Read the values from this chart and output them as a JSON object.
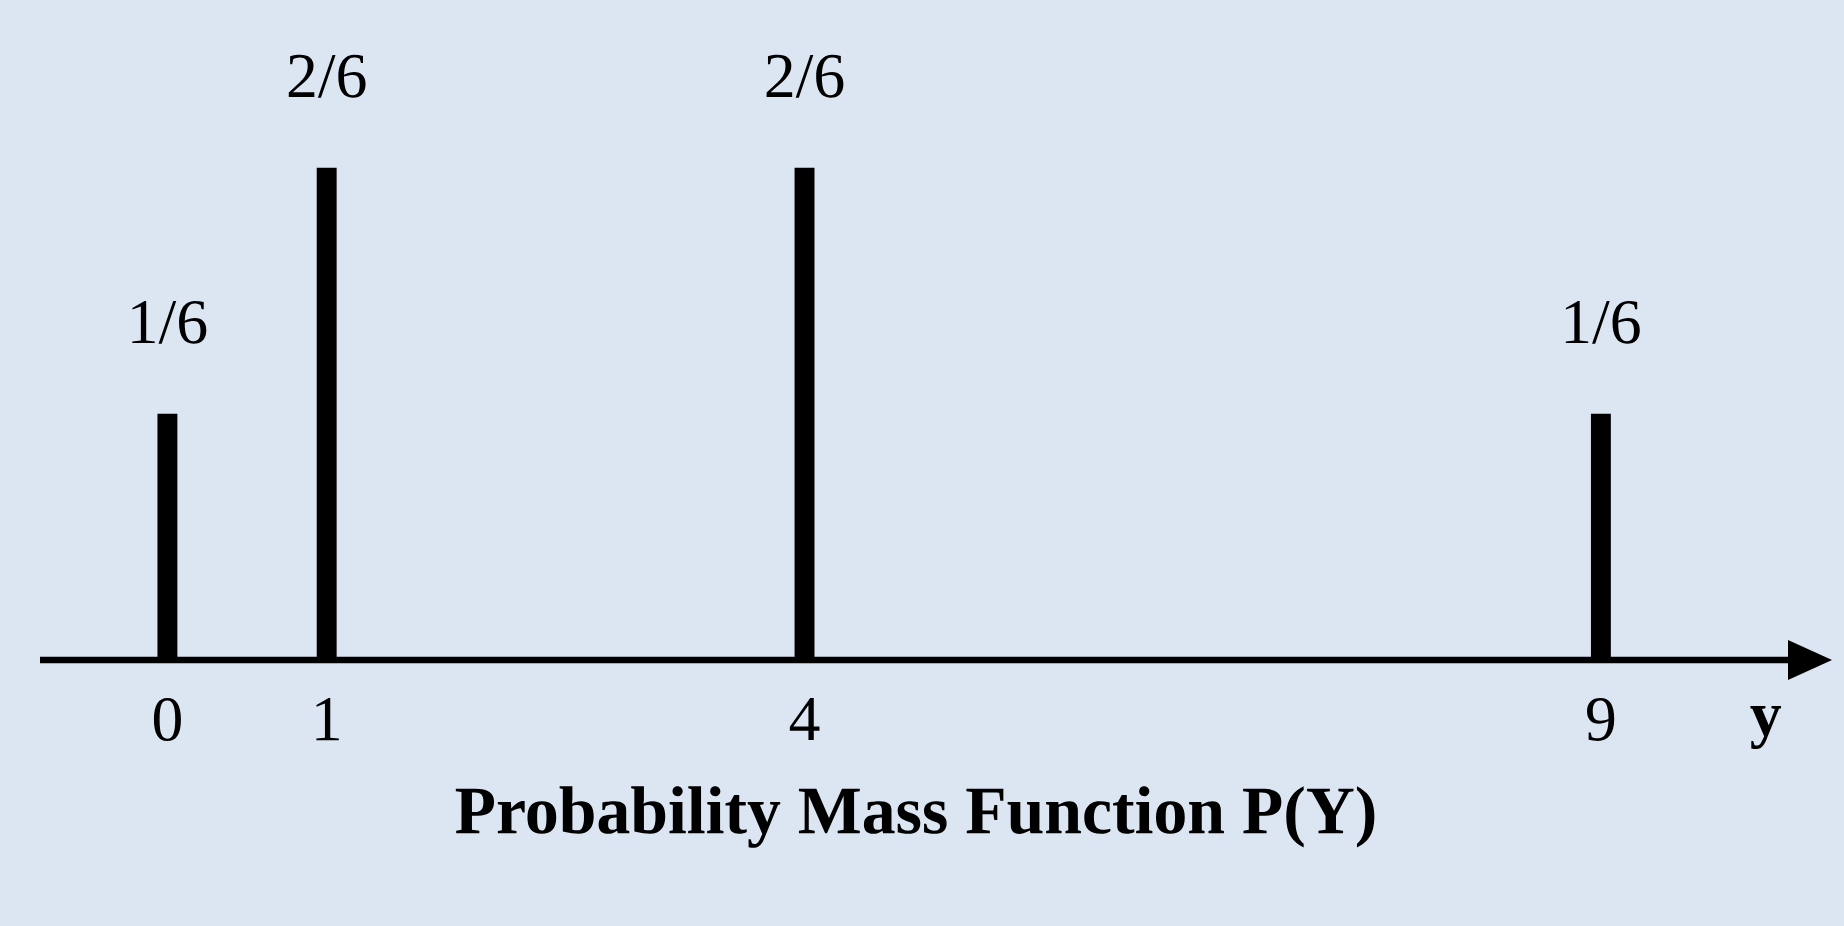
{
  "chart_data": {
    "type": "bar",
    "title": "Probability Mass Function P(Y)",
    "xlabel": "y",
    "x": [
      0,
      1,
      4,
      9
    ],
    "values": [
      0.1667,
      0.3333,
      0.3333,
      0.1667
    ],
    "value_labels": [
      "1/6",
      "2/6",
      "2/6",
      "1/6"
    ],
    "color": "#000000",
    "xlim": [
      -0.8,
      10.2
    ],
    "xticks": [
      0,
      1,
      4,
      9
    ]
  }
}
